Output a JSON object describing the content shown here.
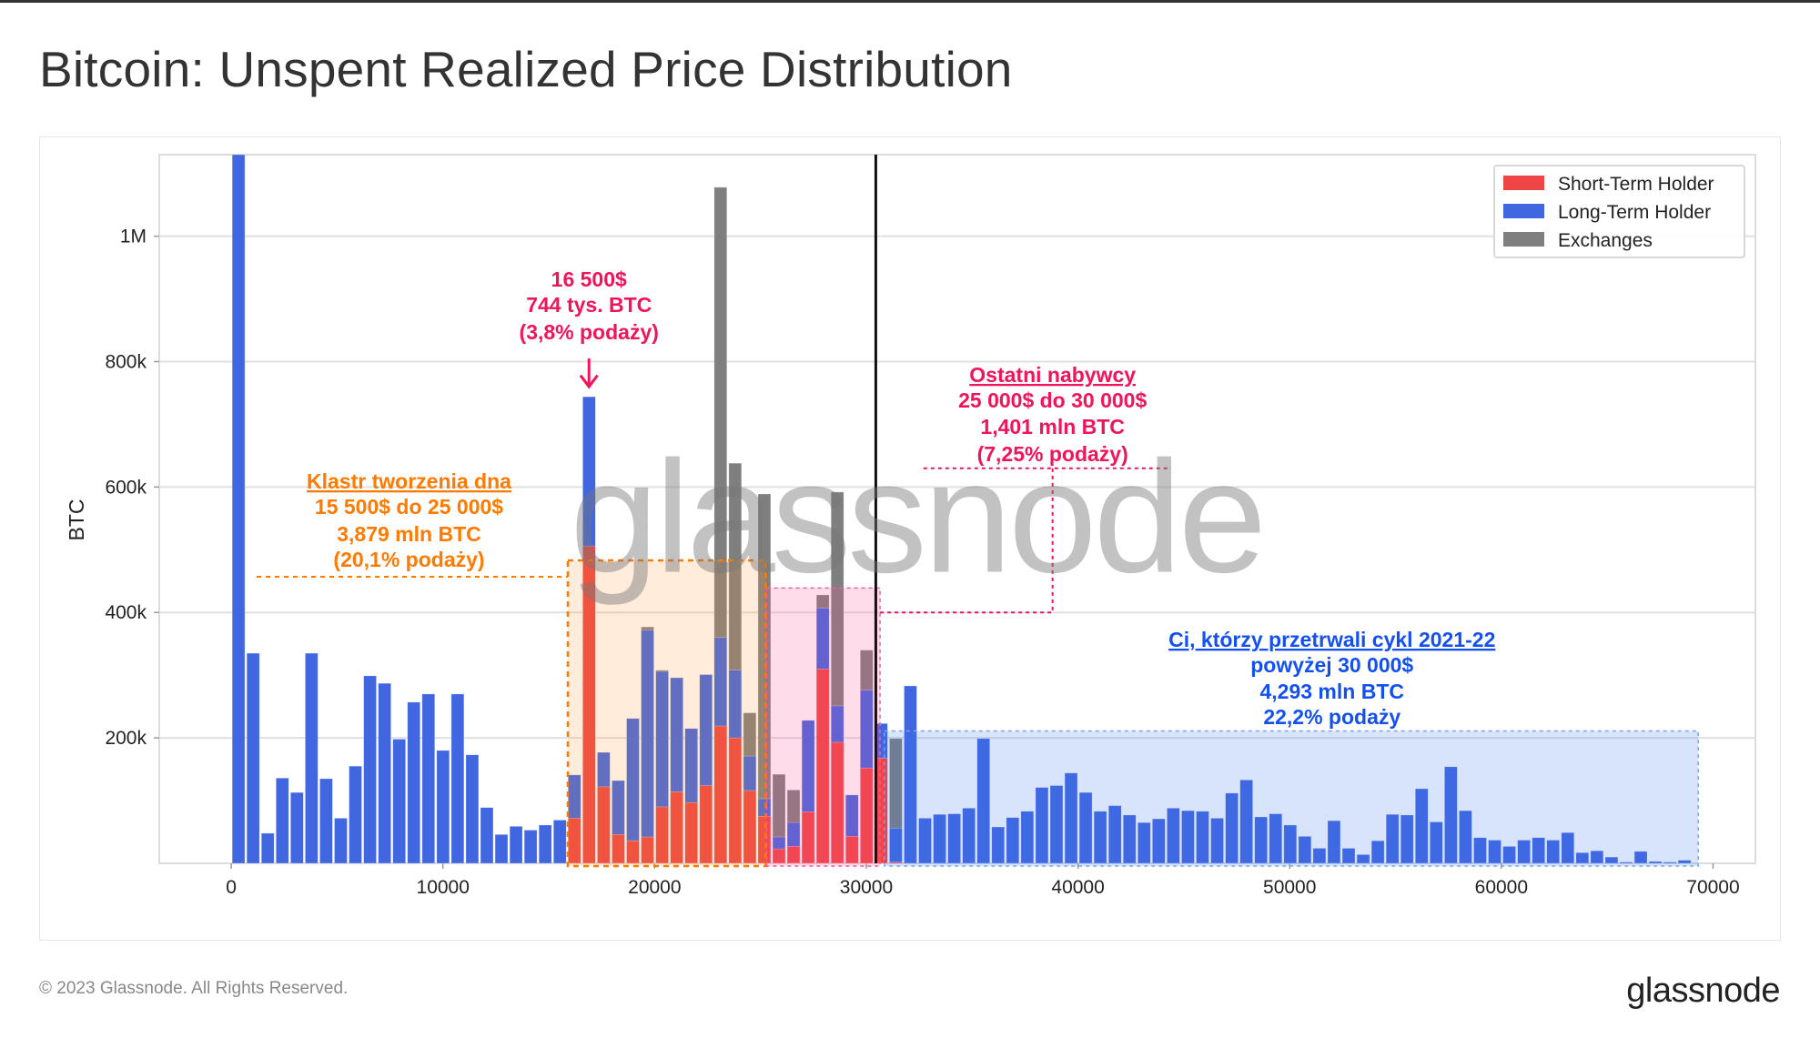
{
  "title": "Bitcoin: Unspent Realized Price Distribution",
  "footer": "© 2023 Glassnode. All Rights Reserved.",
  "logo": "glassnode",
  "watermark": "glassnode",
  "colors": {
    "sth": "#ee4545",
    "lth": "#4066e0",
    "exchanges": "#7f7f7f",
    "pink": "#f0145a",
    "orange": "#ff7a00",
    "blue": "#1450f0"
  },
  "chart_data": {
    "type": "bar",
    "ylabel": "BTC",
    "xlabel": "",
    "xlim": [
      -3400,
      72000
    ],
    "ylim": [
      0,
      1130000
    ],
    "grid": "horizontal",
    "legend_position": "top-right",
    "x_ticks": [
      {
        "v": 0,
        "label": "0"
      },
      {
        "v": 10000,
        "label": "10000"
      },
      {
        "v": 20000,
        "label": "20000"
      },
      {
        "v": 30000,
        "label": "30000"
      },
      {
        "v": 40000,
        "label": "40000"
      },
      {
        "v": 50000,
        "label": "50000"
      },
      {
        "v": 60000,
        "label": "60000"
      },
      {
        "v": 70000,
        "label": "70000"
      }
    ],
    "y_ticks": [
      {
        "v": 200000,
        "label": "200k"
      },
      {
        "v": 400000,
        "label": "400k"
      },
      {
        "v": 600000,
        "label": "600k"
      },
      {
        "v": 800000,
        "label": "800k"
      },
      {
        "v": 1000000,
        "label": "1M"
      }
    ],
    "bin_start": 0,
    "bin_width": 690,
    "current_price": 30450,
    "series": [
      {
        "name": "Short-Term Holder",
        "color": "#ee4545",
        "values": [
          0,
          0,
          0,
          0,
          0,
          0,
          0,
          0,
          0,
          0,
          0,
          0,
          0,
          0,
          0,
          0,
          0,
          0,
          0,
          0,
          0,
          0,
          0,
          72000,
          506000,
          122000,
          46000,
          36000,
          42000,
          90000,
          114000,
          97000,
          124000,
          219000,
          200000,
          116000,
          75000,
          23000,
          27000,
          82000,
          310000,
          193000,
          43000,
          152000,
          168000,
          2000,
          0,
          0,
          0,
          0,
          0,
          0,
          0,
          0,
          0,
          0,
          0,
          0,
          0,
          0,
          0,
          0,
          0,
          0,
          0,
          0,
          0,
          0,
          0,
          0,
          0,
          0,
          0,
          0,
          0,
          0,
          0,
          0,
          0,
          0,
          0,
          0,
          0,
          0,
          0,
          0,
          0,
          0,
          0,
          0,
          0,
          0,
          0,
          0,
          0,
          0,
          0,
          0,
          0,
          0
        ]
      },
      {
        "name": "Long-Term Holder",
        "color": "#4066e0",
        "values": [
          1130000,
          335000,
          48000,
          136000,
          113000,
          335000,
          135000,
          72000,
          155000,
          299000,
          287000,
          198000,
          257000,
          270000,
          180000,
          270000,
          173000,
          89000,
          46000,
          59000,
          53000,
          61000,
          69000,
          141000,
          744000,
          177000,
          132000,
          231000,
          372000,
          306000,
          296000,
          215000,
          301000,
          360000,
          308000,
          171000,
          103000,
          42000,
          65000,
          228000,
          407000,
          251000,
          109000,
          276000,
          223000,
          56000,
          283000,
          72000,
          78000,
          79000,
          88000,
          199000,
          58000,
          73000,
          83000,
          121000,
          124000,
          144000,
          113000,
          83000,
          92000,
          77000,
          65000,
          71000,
          88000,
          84000,
          83000,
          72000,
          112000,
          133000,
          74000,
          79000,
          61000,
          43000,
          24000,
          68000,
          24000,
          14000,
          36000,
          78000,
          77000,
          119000,
          66000,
          154000,
          84000,
          41000,
          37000,
          27000,
          37000,
          41000,
          37000,
          49000,
          17000,
          20000,
          10000,
          2000,
          19000,
          3000,
          2000,
          5000
        ]
      },
      {
        "name": "Exchanges",
        "color": "#7f7f7f",
        "values": [
          0,
          0,
          0,
          0,
          0,
          0,
          0,
          0,
          0,
          0,
          0,
          0,
          0,
          0,
          0,
          0,
          0,
          0,
          0,
          0,
          0,
          0,
          0,
          0,
          0,
          0,
          0,
          0,
          377000,
          308000,
          0,
          0,
          0,
          1078000,
          638000,
          240000,
          589000,
          142000,
          117000,
          0,
          428000,
          592000,
          0,
          340000,
          0,
          199000,
          0,
          0,
          0,
          0,
          0,
          0,
          0,
          0,
          0,
          0,
          0,
          0,
          0,
          0,
          0,
          0,
          0,
          0,
          0,
          0,
          0,
          0,
          0,
          0,
          0,
          0,
          0,
          0,
          0,
          0,
          0,
          0,
          0,
          0,
          0,
          0,
          0,
          0,
          0,
          0,
          0,
          0,
          0,
          0,
          0,
          0,
          0,
          0,
          0,
          0,
          0,
          0,
          0,
          0
        ]
      }
    ],
    "annotations": {
      "bottom": {
        "lines": [
          "16 500$",
          "744 tys. BTC",
          "(3,8% podaży)"
        ]
      },
      "cluster": {
        "lines": [
          "Klastr tworzenia dna",
          "15 500$ do 25 000$",
          "3,879 mln BTC",
          "(20,1% podaży)"
        ]
      },
      "recent": {
        "lines": [
          "Ostatni nabywcy",
          "25 000$ do 30 000$",
          "1,401 mln BTC",
          "(7,25% podaży)"
        ]
      },
      "survivors": {
        "lines": [
          "Ci, którzy przetrwali cykl 2021-22",
          "powyżej 30 000$",
          "4,293 mln BTC",
          "22,2% podaży"
        ]
      }
    }
  }
}
